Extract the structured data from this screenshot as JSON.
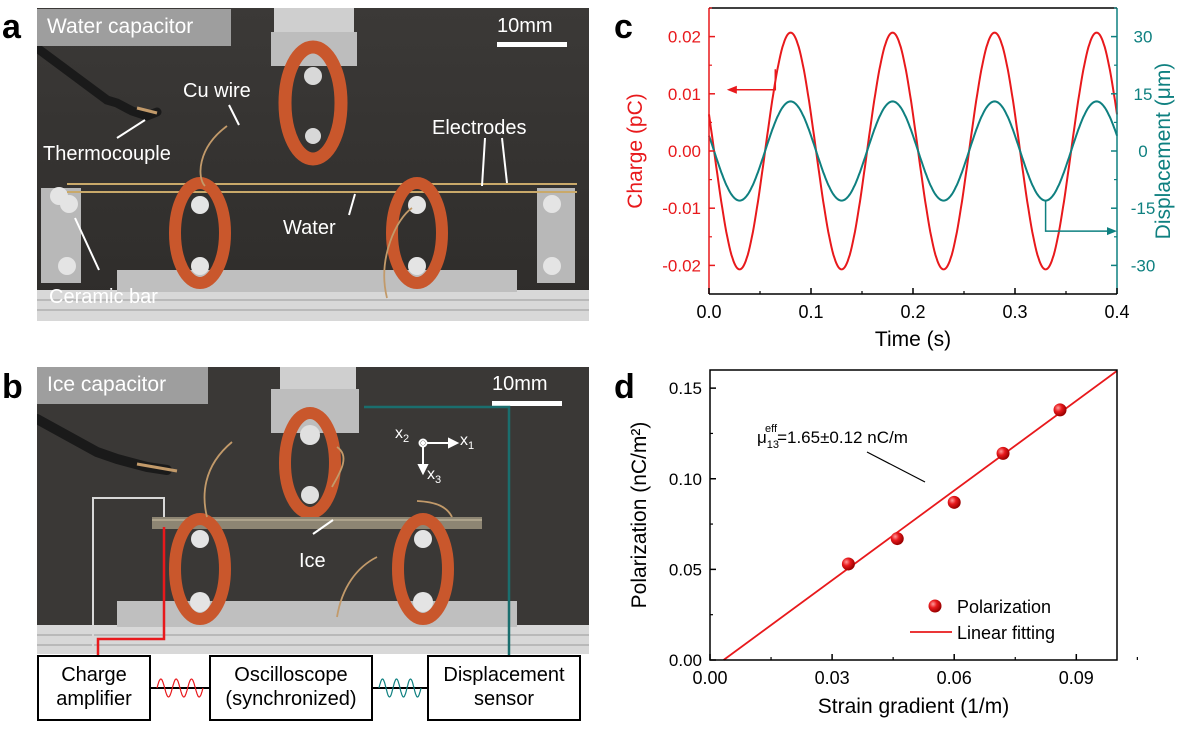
{
  "panel_labels": {
    "a": "a",
    "b": "b",
    "c": "c",
    "d": "d"
  },
  "photo_a": {
    "title": "Water capacitor",
    "scale": "10mm",
    "labels": {
      "cu_wire": "Cu wire",
      "thermocouple": "Thermocouple",
      "electrodes": "Electrodes",
      "water": "Water",
      "ceramic_bar": "Ceramic bar"
    }
  },
  "photo_b": {
    "title": "Ice capacitor",
    "scale": "10mm",
    "labels": {
      "ice": "Ice",
      "x1": "x",
      "x1_sub": "1",
      "x2": "x",
      "x2_sub": "2",
      "x3": "x",
      "x3_sub": "3"
    }
  },
  "blocks": {
    "charge_amplifier": [
      "Charge",
      "amplifier"
    ],
    "oscilloscope": [
      "Oscilloscope",
      "(synchronized)"
    ],
    "displacement_sensor": [
      "Displacement",
      "sensor"
    ]
  },
  "colors": {
    "charge": "#e8191c",
    "displacement": "#0f8080",
    "fit": "#e8191c",
    "photo_bg": "#3a3836",
    "orange_ring": "#c9572c",
    "wire_teal": "#1a6e6e"
  },
  "chart_data": [
    {
      "type": "line",
      "panel": "c",
      "xlabel": "Time (s)",
      "ylabel_left": "Charge (pC)",
      "ylabel_right": "Displacement (μm)",
      "xlim": [
        0,
        0.4
      ],
      "ylim_left": [
        -0.025,
        0.025
      ],
      "ylim_right": [
        -37.5,
        37.5
      ],
      "xticks": [
        "0.0",
        "0.1",
        "0.2",
        "0.3",
        "0.4"
      ],
      "yticks_left": [
        "0.02",
        "0.01",
        "0.00",
        "-0.01",
        "-0.02"
      ],
      "yticks_right": [
        "30",
        "15",
        "0",
        "-15",
        "-30"
      ],
      "series": [
        {
          "axis": "left",
          "amplitude": 0.0207,
          "period": 0.1,
          "peak_at": 0.08,
          "color": "#e8191c"
        },
        {
          "axis": "right",
          "amplitude": 13.0,
          "period": 0.1,
          "peak_at": 0.08,
          "color": "#0f8080"
        }
      ]
    },
    {
      "type": "scatter",
      "panel": "d",
      "xlabel": "Strain gradient (1/m)",
      "ylabel": "Polarization (nC/m²)",
      "xlim": [
        0,
        0.1
      ],
      "ylim": [
        0,
        0.16
      ],
      "xticks": [
        "0.00",
        "0.03",
        "0.06",
        "0.09"
      ],
      "yticks": [
        "0.00",
        "0.05",
        "0.10",
        "0.15"
      ],
      "points": [
        {
          "x": 0.034,
          "y": 0.053
        },
        {
          "x": 0.046,
          "y": 0.067
        },
        {
          "x": 0.06,
          "y": 0.087
        },
        {
          "x": 0.072,
          "y": 0.114
        },
        {
          "x": 0.086,
          "y": 0.138
        }
      ],
      "fit": {
        "slope": 1.65,
        "intercept": -0.0055
      },
      "annotation": {
        "mu": "μ",
        "sub": "13",
        "sup": "eff",
        "rest": "=1.65±0.12 nC/m"
      },
      "legend": [
        "Polarization",
        "Linear fitting"
      ],
      "legend_position": "bottom-right"
    }
  ]
}
